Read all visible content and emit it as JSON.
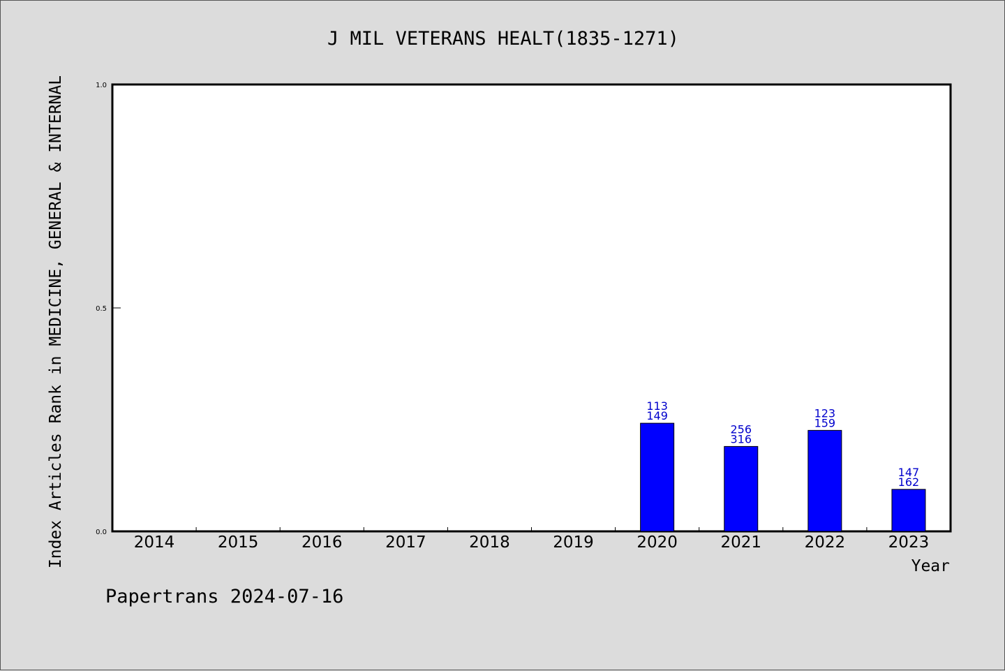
{
  "chart_data": {
    "type": "bar",
    "title": "J MIL VETERANS HEALT(1835-1271)",
    "xlabel": "Year",
    "ylabel": "Index Articles Rank in MEDICINE, GENERAL & INTERNAL",
    "ylim": [
      0,
      1
    ],
    "yticks": [
      "0.0",
      "0.5",
      "1.0"
    ],
    "categories": [
      "2014",
      "2015",
      "2016",
      "2017",
      "2018",
      "2019",
      "2020",
      "2021",
      "2022",
      "2023"
    ],
    "values": [
      null,
      null,
      null,
      null,
      null,
      null,
      0.242,
      0.19,
      0.226,
      0.094
    ],
    "bar_labels_top": [
      "",
      "",
      "",
      "",
      "",
      "",
      "113",
      "256",
      "123",
      "147"
    ],
    "bar_labels_bottom": [
      "",
      "",
      "",
      "",
      "",
      "",
      "149",
      "316",
      "159",
      "162"
    ],
    "bar_color": "#0000ff",
    "label_color": "#0000cc",
    "grid": false
  },
  "footer": "Papertrans 2024-07-16"
}
